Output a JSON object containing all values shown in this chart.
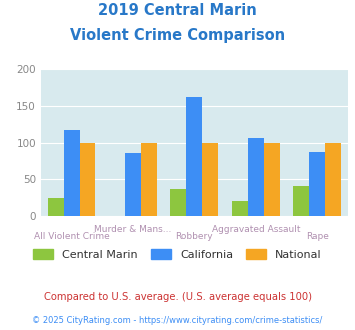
{
  "title_line1": "2019 Central Marin",
  "title_line2": "Violent Crime Comparison",
  "title_color": "#2878c8",
  "categories": [
    "All Violent Crime",
    "Murder & Mans...",
    "Robbery",
    "Aggravated Assault",
    "Rape"
  ],
  "central_marin": [
    25,
    0,
    37,
    20,
    41
  ],
  "california": [
    117,
    86,
    162,
    107,
    87
  ],
  "national": [
    100,
    100,
    100,
    100,
    100
  ],
  "colors": {
    "central_marin": "#8dc63f",
    "california": "#3d8ef5",
    "national": "#f5a623"
  },
  "ylim": [
    0,
    200
  ],
  "yticks": [
    0,
    50,
    100,
    150,
    200
  ],
  "background_color": "#d8eaee",
  "legend_labels": [
    "Central Marin",
    "California",
    "National"
  ],
  "footnote1": "Compared to U.S. average. (U.S. average equals 100)",
  "footnote2": "© 2025 CityRating.com - https://www.cityrating.com/crime-statistics/",
  "footnote1_color": "#cc3333",
  "footnote2_color": "#3d8ef5"
}
